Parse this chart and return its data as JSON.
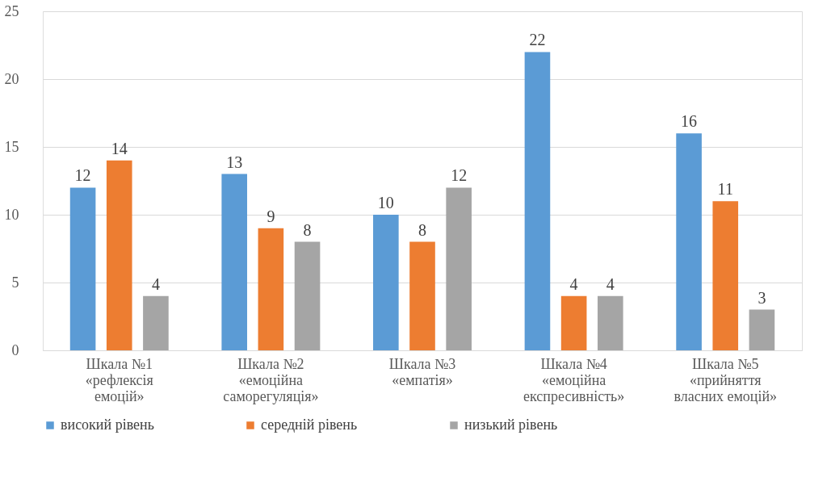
{
  "chart_data": {
    "type": "bar",
    "categories": [
      "Шкала №1\n«рефлексія\nемоцій»",
      "Шкала №2\n«емоційна\nсаморегуляція»",
      "Шкала №3\n«емпатія»",
      "Шкала №4\n«емоційна\nекспресивність»",
      "Шкала №5\n«прийняття\nвласних емоцій»"
    ],
    "series": [
      {
        "name": "високий рівень",
        "color": "#5b9bd5",
        "values": [
          12,
          13,
          10,
          22,
          16
        ]
      },
      {
        "name": "середній рівень",
        "color": "#ed7d31",
        "values": [
          14,
          9,
          8,
          4,
          11
        ]
      },
      {
        "name": "низький рівень",
        "color": "#a5a5a5",
        "values": [
          4,
          8,
          12,
          4,
          3
        ]
      }
    ],
    "ylim": [
      0,
      25
    ],
    "yticks": [
      0,
      5,
      10,
      15,
      20,
      25
    ],
    "grid": "y",
    "legend": "bottom",
    "data_labels": true
  }
}
